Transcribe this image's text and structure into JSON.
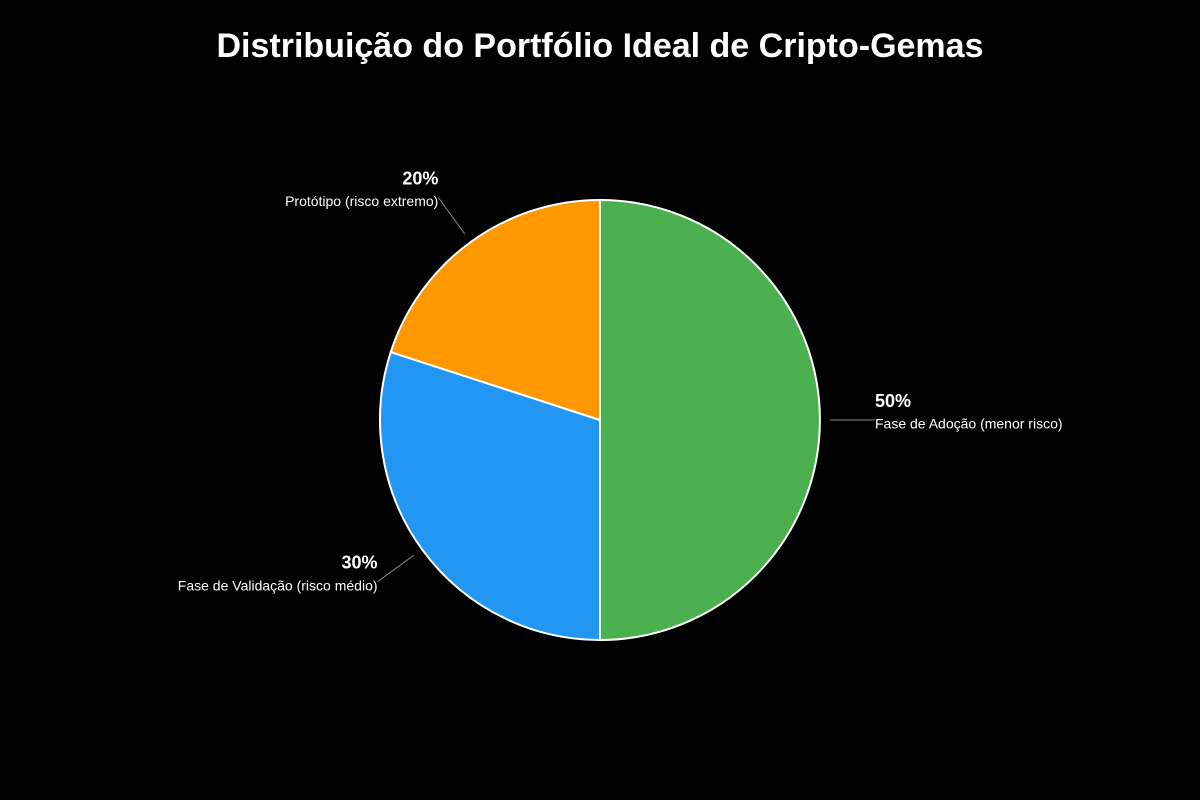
{
  "chart_data": {
    "type": "pie",
    "title": "Distribuição do Portfólio Ideal de Cripto-Gemas",
    "categories": [
      "Fase de Adoção (menor risco)",
      "Fase de Validação (risco médio)",
      "Protótipo (risco extremo)"
    ],
    "values": [
      50,
      30,
      20
    ],
    "value_labels": [
      "50%",
      "30%",
      "20%"
    ],
    "colors": [
      "#4caf50",
      "#2196f3",
      "#ff9800"
    ]
  }
}
